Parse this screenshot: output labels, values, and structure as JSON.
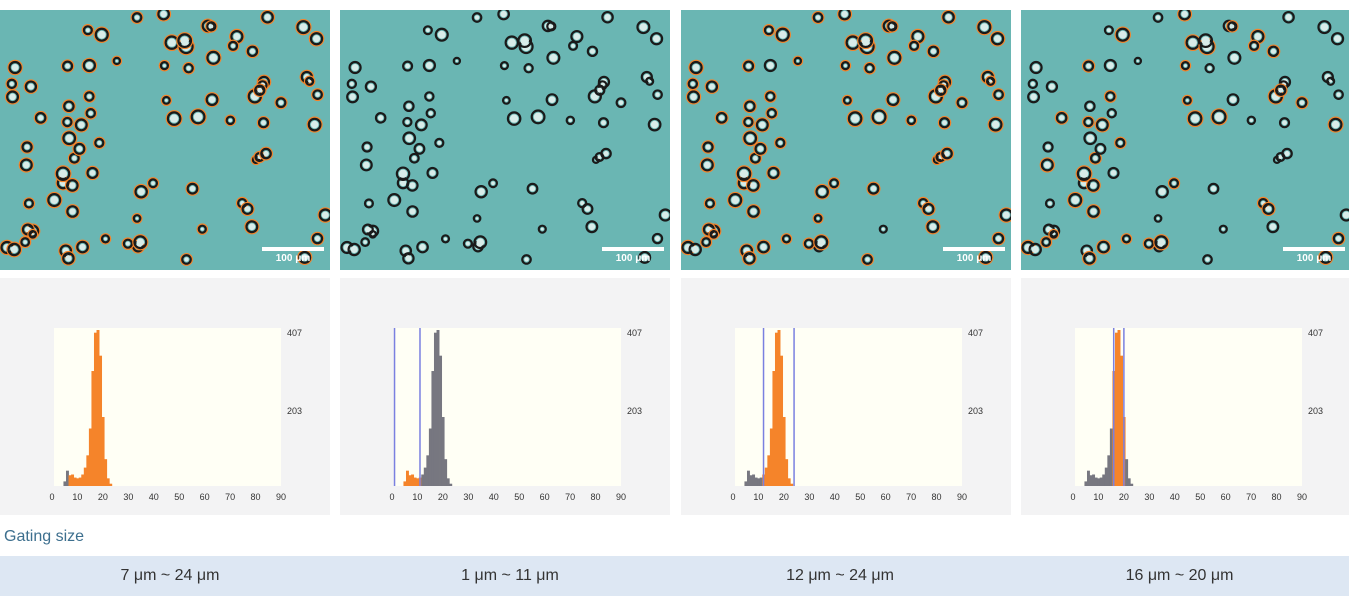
{
  "scale_label": "100 μm",
  "gating_label": "Gating size",
  "colors": {
    "background": "#6ab6b3",
    "in_gate": "#f5842a",
    "out_gate": "#777780",
    "gate_line": "#7a80e0",
    "plot_bg": "#fffff5"
  },
  "panels": [
    {
      "gate_text": "7 μm ~ 24 μm",
      "gate": [
        7,
        24
      ],
      "show_lines": false
    },
    {
      "gate_text": "1 μm ~ 11 μm",
      "gate": [
        1,
        11
      ],
      "show_lines": true
    },
    {
      "gate_text": "12 μm ~ 24 μm",
      "gate": [
        12,
        24
      ],
      "show_lines": true
    },
    {
      "gate_text": "16 μm ~ 20 μm",
      "gate": [
        16,
        20
      ],
      "show_lines": true
    }
  ],
  "chart_data": {
    "type": "bar",
    "title": "",
    "xlabel": "",
    "ylabel": "",
    "x_ticks": [
      0,
      10,
      20,
      30,
      40,
      50,
      60,
      70,
      80,
      90
    ],
    "y_ticks": [
      203,
      407
    ],
    "xlim": [
      0,
      90
    ],
    "ylim": [
      0,
      407
    ],
    "bins": [
      5,
      6,
      7,
      8,
      9,
      10,
      11,
      12,
      13,
      14,
      15,
      16,
      17,
      18,
      19,
      20,
      21,
      22,
      23
    ],
    "counts": [
      12,
      40,
      28,
      30,
      22,
      20,
      22,
      30,
      48,
      80,
      150,
      300,
      400,
      407,
      340,
      180,
      70,
      20,
      6
    ]
  }
}
